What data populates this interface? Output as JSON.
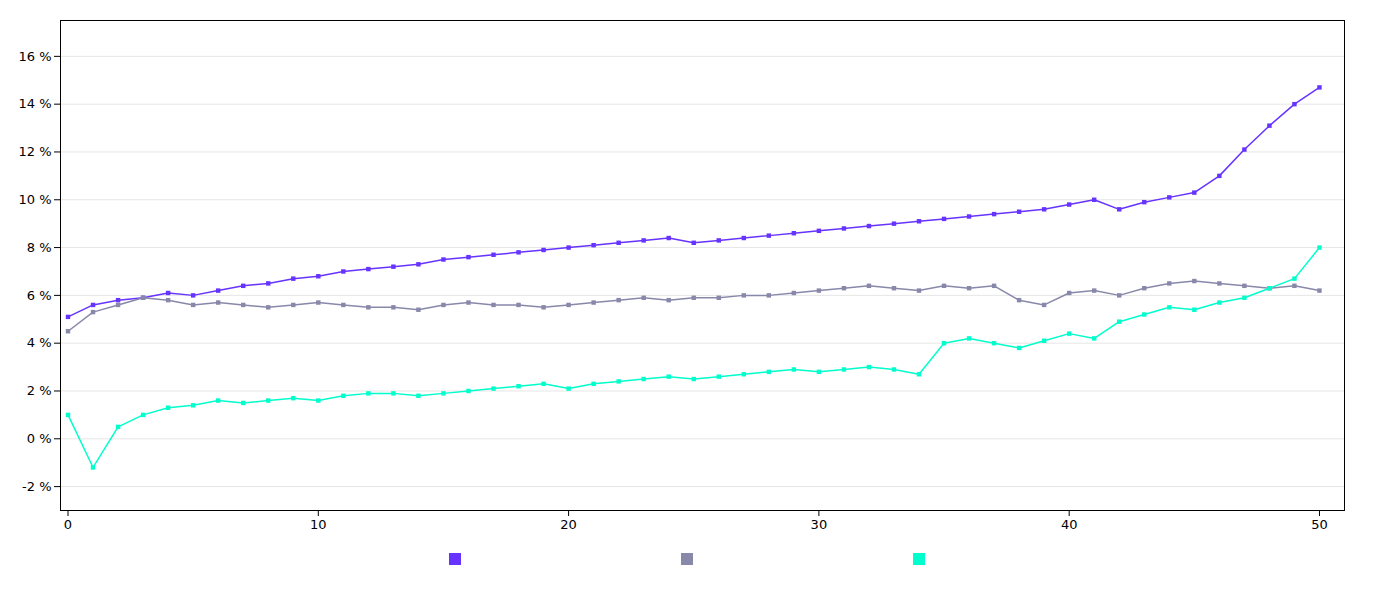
{
  "chart_data": {
    "type": "line",
    "x": [
      0,
      1,
      2,
      3,
      4,
      5,
      6,
      7,
      8,
      9,
      10,
      11,
      12,
      13,
      14,
      15,
      16,
      17,
      18,
      19,
      20,
      21,
      22,
      23,
      24,
      25,
      26,
      27,
      28,
      29,
      30,
      31,
      32,
      33,
      34,
      35,
      36,
      37,
      38,
      39,
      40,
      41,
      42,
      43,
      44,
      45,
      46,
      47,
      48,
      49,
      50
    ],
    "series": [
      {
        "color": "#6633ff",
        "marker": "square",
        "values": [
          0.051,
          0.056,
          0.058,
          0.059,
          0.061,
          0.06,
          0.062,
          0.064,
          0.065,
          0.067,
          0.068,
          0.07,
          0.071,
          0.072,
          0.073,
          0.075,
          0.076,
          0.077,
          0.078,
          0.079,
          0.08,
          0.081,
          0.082,
          0.083,
          0.084,
          0.082,
          0.083,
          0.084,
          0.085,
          0.086,
          0.087,
          0.088,
          0.089,
          0.09,
          0.091,
          0.092,
          0.093,
          0.094,
          0.095,
          0.096,
          0.098,
          0.1,
          0.096,
          0.099,
          0.101,
          0.103,
          0.11,
          0.121,
          0.131,
          0.14,
          0.147
        ]
      },
      {
        "color": "#8888aa",
        "marker": "square",
        "values": [
          0.045,
          0.053,
          0.056,
          0.059,
          0.058,
          0.056,
          0.057,
          0.056,
          0.055,
          0.056,
          0.057,
          0.056,
          0.055,
          0.055,
          0.054,
          0.056,
          0.057,
          0.056,
          0.056,
          0.055,
          0.056,
          0.057,
          0.058,
          0.059,
          0.058,
          0.059,
          0.059,
          0.06,
          0.06,
          0.061,
          0.062,
          0.063,
          0.064,
          0.063,
          0.062,
          0.064,
          0.063,
          0.064,
          0.058,
          0.056,
          0.061,
          0.062,
          0.06,
          0.063,
          0.065,
          0.066,
          0.065,
          0.064,
          0.063,
          0.064,
          0.062
        ]
      },
      {
        "color": "#00ffcc",
        "marker": "square",
        "values": [
          0.01,
          -0.012,
          0.005,
          0.01,
          0.013,
          0.014,
          0.016,
          0.015,
          0.016,
          0.017,
          0.016,
          0.018,
          0.019,
          0.019,
          0.018,
          0.019,
          0.02,
          0.021,
          0.022,
          0.023,
          0.021,
          0.023,
          0.024,
          0.025,
          0.026,
          0.025,
          0.026,
          0.027,
          0.028,
          0.029,
          0.028,
          0.029,
          0.03,
          0.029,
          0.027,
          0.04,
          0.042,
          0.04,
          0.038,
          0.041,
          0.044,
          0.042,
          0.049,
          0.052,
          0.055,
          0.054,
          0.057,
          0.059,
          0.063,
          0.067,
          0.08
        ]
      }
    ],
    "xlim": [
      -0.3,
      51
    ],
    "xticks": [
      0,
      10,
      20,
      30,
      40,
      50
    ],
    "ylim": [
      -0.03,
      0.175
    ],
    "yticks": [
      {
        "value": -0.02,
        "label": "-2 %"
      },
      {
        "value": 0.0,
        "label": "0 %"
      },
      {
        "value": 0.02,
        "label": "2 %"
      },
      {
        "value": 0.04,
        "label": "4 %"
      },
      {
        "value": 0.06,
        "label": "6 %"
      },
      {
        "value": 0.08,
        "label": "8 %"
      },
      {
        "value": 0.1,
        "label": "10 %"
      },
      {
        "value": 0.12,
        "label": "12 %"
      },
      {
        "value": 0.14,
        "label": "14 %"
      },
      {
        "value": 0.16,
        "label": "16 %"
      }
    ],
    "grid": true,
    "legend": "bottom"
  }
}
